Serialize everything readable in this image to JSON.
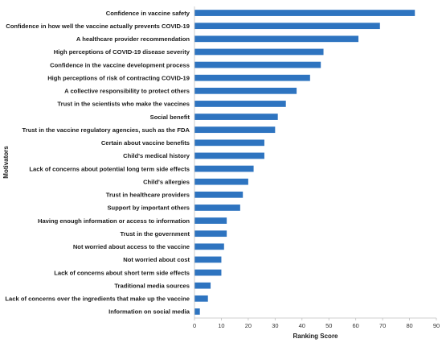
{
  "chart_data": {
    "type": "bar",
    "orientation": "horizontal",
    "categories": [
      "Confidence in vaccine safety",
      "Confidence in how well the vaccine actually prevents COVID-19",
      "A healthcare provider recommendation",
      "High perceptions of COVID-19 disease severity",
      "Confidence in the vaccine development process",
      "High perceptions of risk of contracting COVID-19",
      "A collective responsibility to protect others",
      "Trust in the scientists who make the vaccines",
      "Social benefit",
      "Trust in the vaccine regulatory agencies, such as the FDA",
      "Certain about vaccine benefits",
      "Child's medical history",
      "Lack of concerns about potential long term side effects",
      "Child's allergies",
      "Trust in healthcare providers",
      "Support by important others",
      "Having enough information or access to information",
      "Trust in the government",
      "Not worried about access to the vaccine",
      "Not worried about cost",
      "Lack of concerns about short term side effects",
      "Traditional media sources",
      "Lack of concerns over the ingredients that make up the vaccine",
      "Information on social media"
    ],
    "values": [
      82,
      69,
      61,
      48,
      47,
      43,
      38,
      34,
      31,
      30,
      26,
      26,
      22,
      20,
      18,
      17,
      12,
      12,
      11,
      10,
      10,
      6,
      5,
      2
    ],
    "xlabel": "Ranking Score",
    "ylabel": "Motivators",
    "xlim": [
      0,
      90
    ],
    "xticks": [
      0,
      10,
      20,
      30,
      40,
      50,
      60,
      70,
      80,
      90
    ],
    "grid": false,
    "legend": "none",
    "bar_color": "#2e74c0",
    "axis_color": "#bfbfbf"
  }
}
